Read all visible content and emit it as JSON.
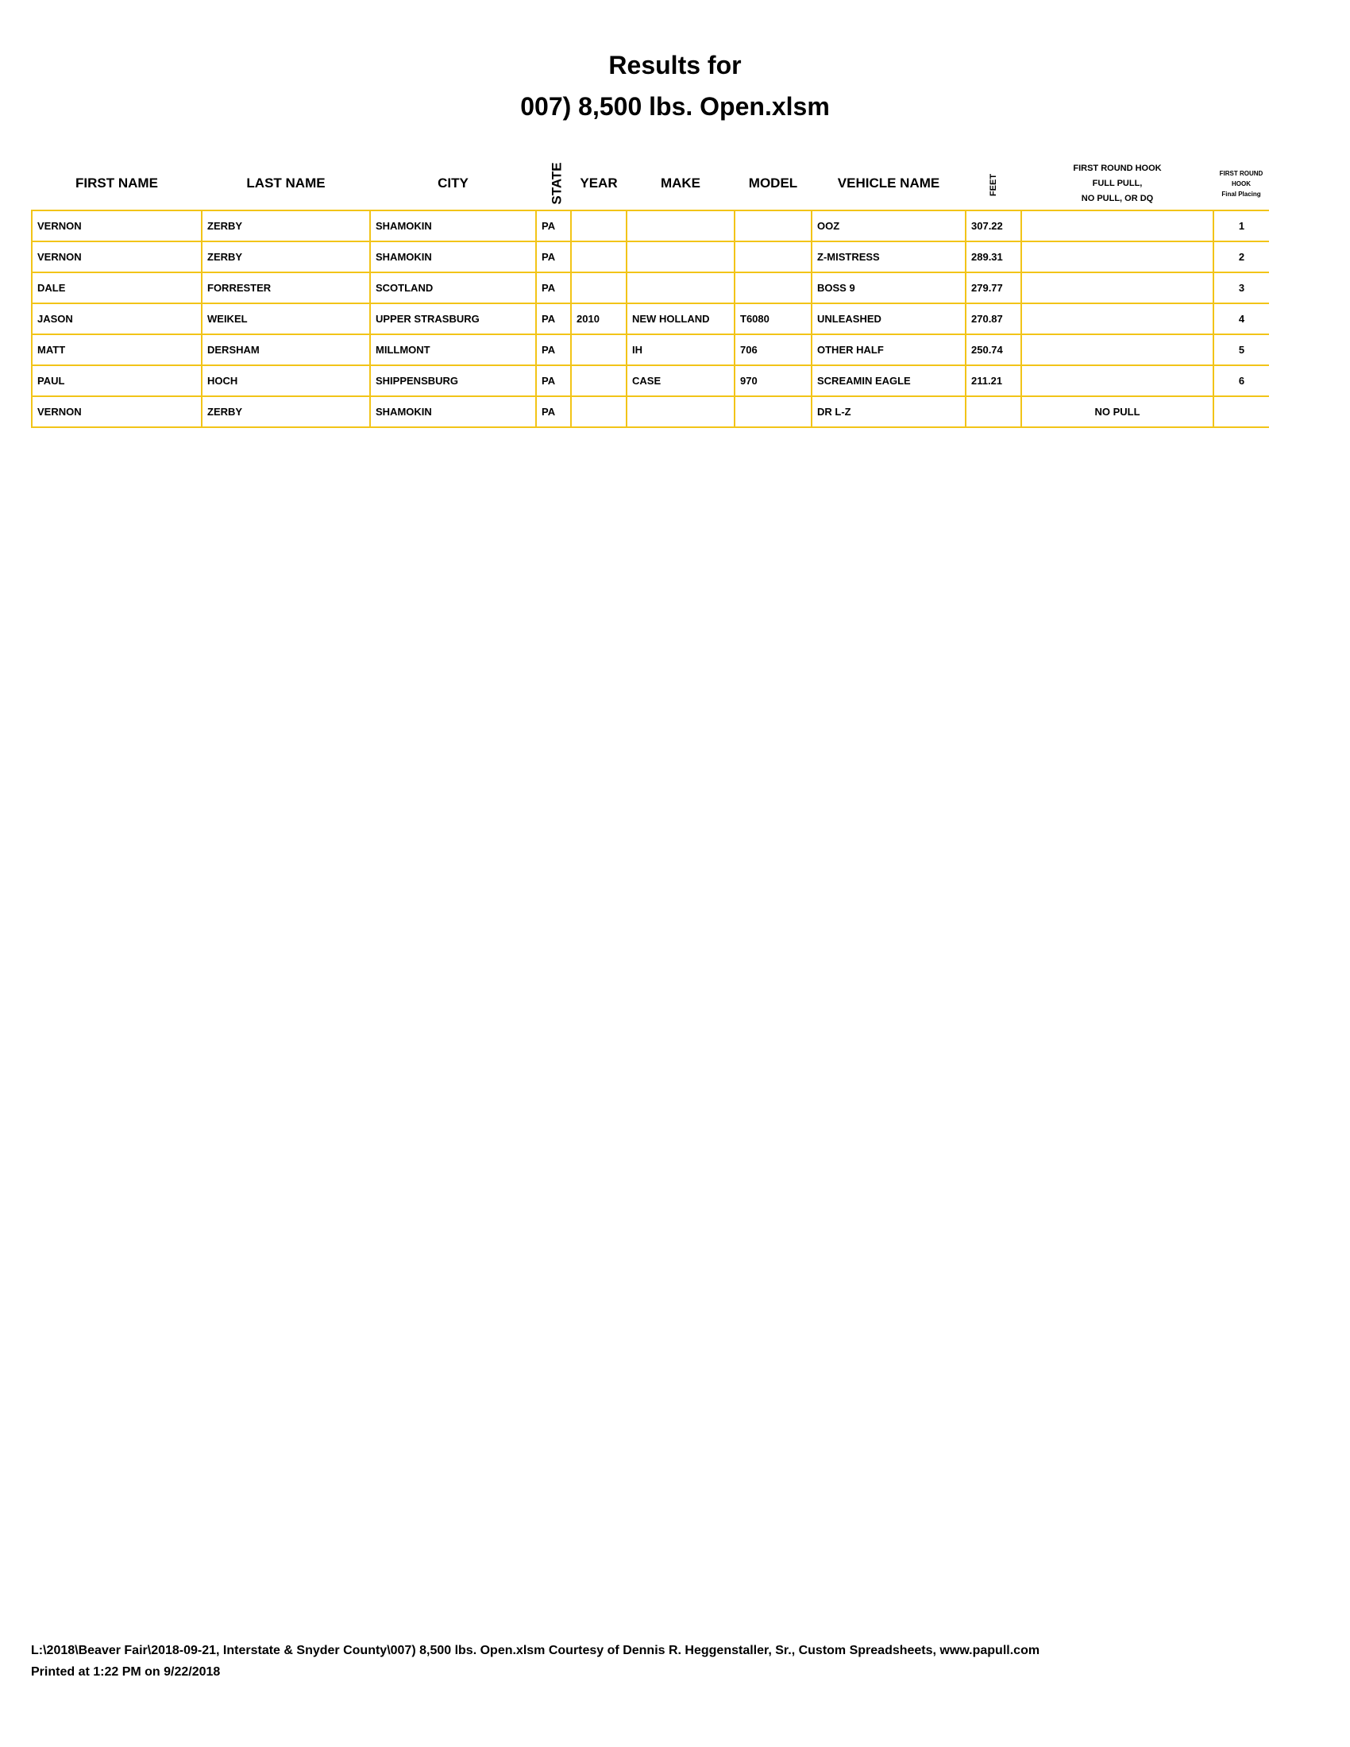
{
  "title_line1": "Results for",
  "title_line2": "007) 8,500 lbs. Open.xlsm",
  "columns": {
    "first_name": "FIRST NAME",
    "last_name": "LAST NAME",
    "city": "CITY",
    "state": "STATE",
    "year": "YEAR",
    "make": "MAKE",
    "model": "MODEL",
    "vehicle_name": "VEHICLE NAME",
    "feet": "FEET",
    "hook_1": "FIRST ROUND HOOK",
    "hook_2": "FULL PULL,",
    "hook_3": "NO PULL, OR DQ",
    "place_1": "FIRST ROUND",
    "place_2": "HOOK",
    "place_3": "Final Placing"
  },
  "rows": [
    {
      "first": "VERNON",
      "last": "ZERBY",
      "city": "SHAMOKIN",
      "state": "PA",
      "year": "",
      "make": "",
      "model": "",
      "vehicle": "OOZ",
      "feet": "307.22",
      "status": "",
      "place": "1"
    },
    {
      "first": "VERNON",
      "last": "ZERBY",
      "city": "SHAMOKIN",
      "state": "PA",
      "year": "",
      "make": "",
      "model": "",
      "vehicle": "Z-MISTRESS",
      "feet": "289.31",
      "status": "",
      "place": "2"
    },
    {
      "first": "DALE",
      "last": "FORRESTER",
      "city": "SCOTLAND",
      "state": "PA",
      "year": "",
      "make": "",
      "model": "",
      "vehicle": "BOSS 9",
      "feet": "279.77",
      "status": "",
      "place": "3"
    },
    {
      "first": "JASON",
      "last": "WEIKEL",
      "city": "UPPER STRASBURG",
      "state": "PA",
      "year": "2010",
      "make": "NEW HOLLAND",
      "model": "T6080",
      "vehicle": "UNLEASHED",
      "feet": "270.87",
      "status": "",
      "place": "4"
    },
    {
      "first": "MATT",
      "last": "DERSHAM",
      "city": "MILLMONT",
      "state": "PA",
      "year": "",
      "make": "IH",
      "model": "706",
      "vehicle": "OTHER HALF",
      "feet": "250.74",
      "status": "",
      "place": "5"
    },
    {
      "first": "PAUL",
      "last": "HOCH",
      "city": "SHIPPENSBURG",
      "state": "PA",
      "year": "",
      "make": "CASE",
      "model": "970",
      "vehicle": "SCREAMIN EAGLE",
      "feet": "211.21",
      "status": "",
      "place": "6"
    },
    {
      "first": "VERNON",
      "last": "ZERBY",
      "city": "SHAMOKIN",
      "state": "PA",
      "year": "",
      "make": "",
      "model": "",
      "vehicle": "DR L-Z",
      "feet": "",
      "status": "NO PULL",
      "place": ""
    }
  ],
  "footer_line1": "L:\\2018\\Beaver Fair\\2018-09-21, Interstate & Snyder County\\007) 8,500 lbs. Open.xlsm  Courtesy of Dennis R. Heggenstaller, Sr., Custom Spreadsheets, www.papull.com",
  "footer_line2": "Printed at 1:22 PM on 9/22/2018",
  "colors": {
    "grid": "#f2c418"
  }
}
